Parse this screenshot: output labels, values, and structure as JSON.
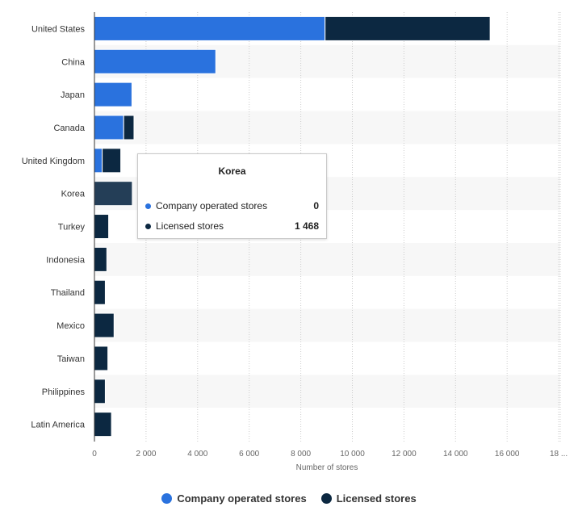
{
  "chart_data": {
    "type": "bar",
    "orientation": "horizontal",
    "stacked": true,
    "categories": [
      "United States",
      "China",
      "Japan",
      "Canada",
      "United Kingdom",
      "Korea",
      "Turkey",
      "Indonesia",
      "Thailand",
      "Mexico",
      "Taiwan",
      "Philippines",
      "Latin America"
    ],
    "series": [
      {
        "name": "Company operated stores",
        "color": "#2a72de",
        "values": [
          8941,
          4704,
          1453,
          1133,
          300,
          0,
          0,
          0,
          0,
          0,
          0,
          0,
          0
        ]
      },
      {
        "name": "Licensed stores",
        "color": "#0c2841",
        "values": [
          6400,
          0,
          0,
          400,
          720,
          1468,
          550,
          480,
          420,
          760,
          520,
          420,
          660
        ]
      }
    ],
    "xlabel": "Number of stores",
    "xlim": [
      0,
      18000
    ],
    "xticks": [
      "0",
      "2 000",
      "4 000",
      "6 000",
      "8 000",
      "10 000",
      "12 000",
      "14 000",
      "16 000",
      "18 ..."
    ],
    "grid": true,
    "legend_position": "bottom"
  },
  "tooltip": {
    "title": "Korea",
    "rows": [
      {
        "label": "Company operated stores",
        "value": "0",
        "color": "#2a72de"
      },
      {
        "label": "Licensed stores",
        "value": "1 468",
        "color": "#0c2841"
      }
    ]
  },
  "legend": {
    "items": [
      {
        "label": "Company operated stores",
        "color": "#2a72de"
      },
      {
        "label": "Licensed stores",
        "color": "#0c2841"
      }
    ]
  }
}
